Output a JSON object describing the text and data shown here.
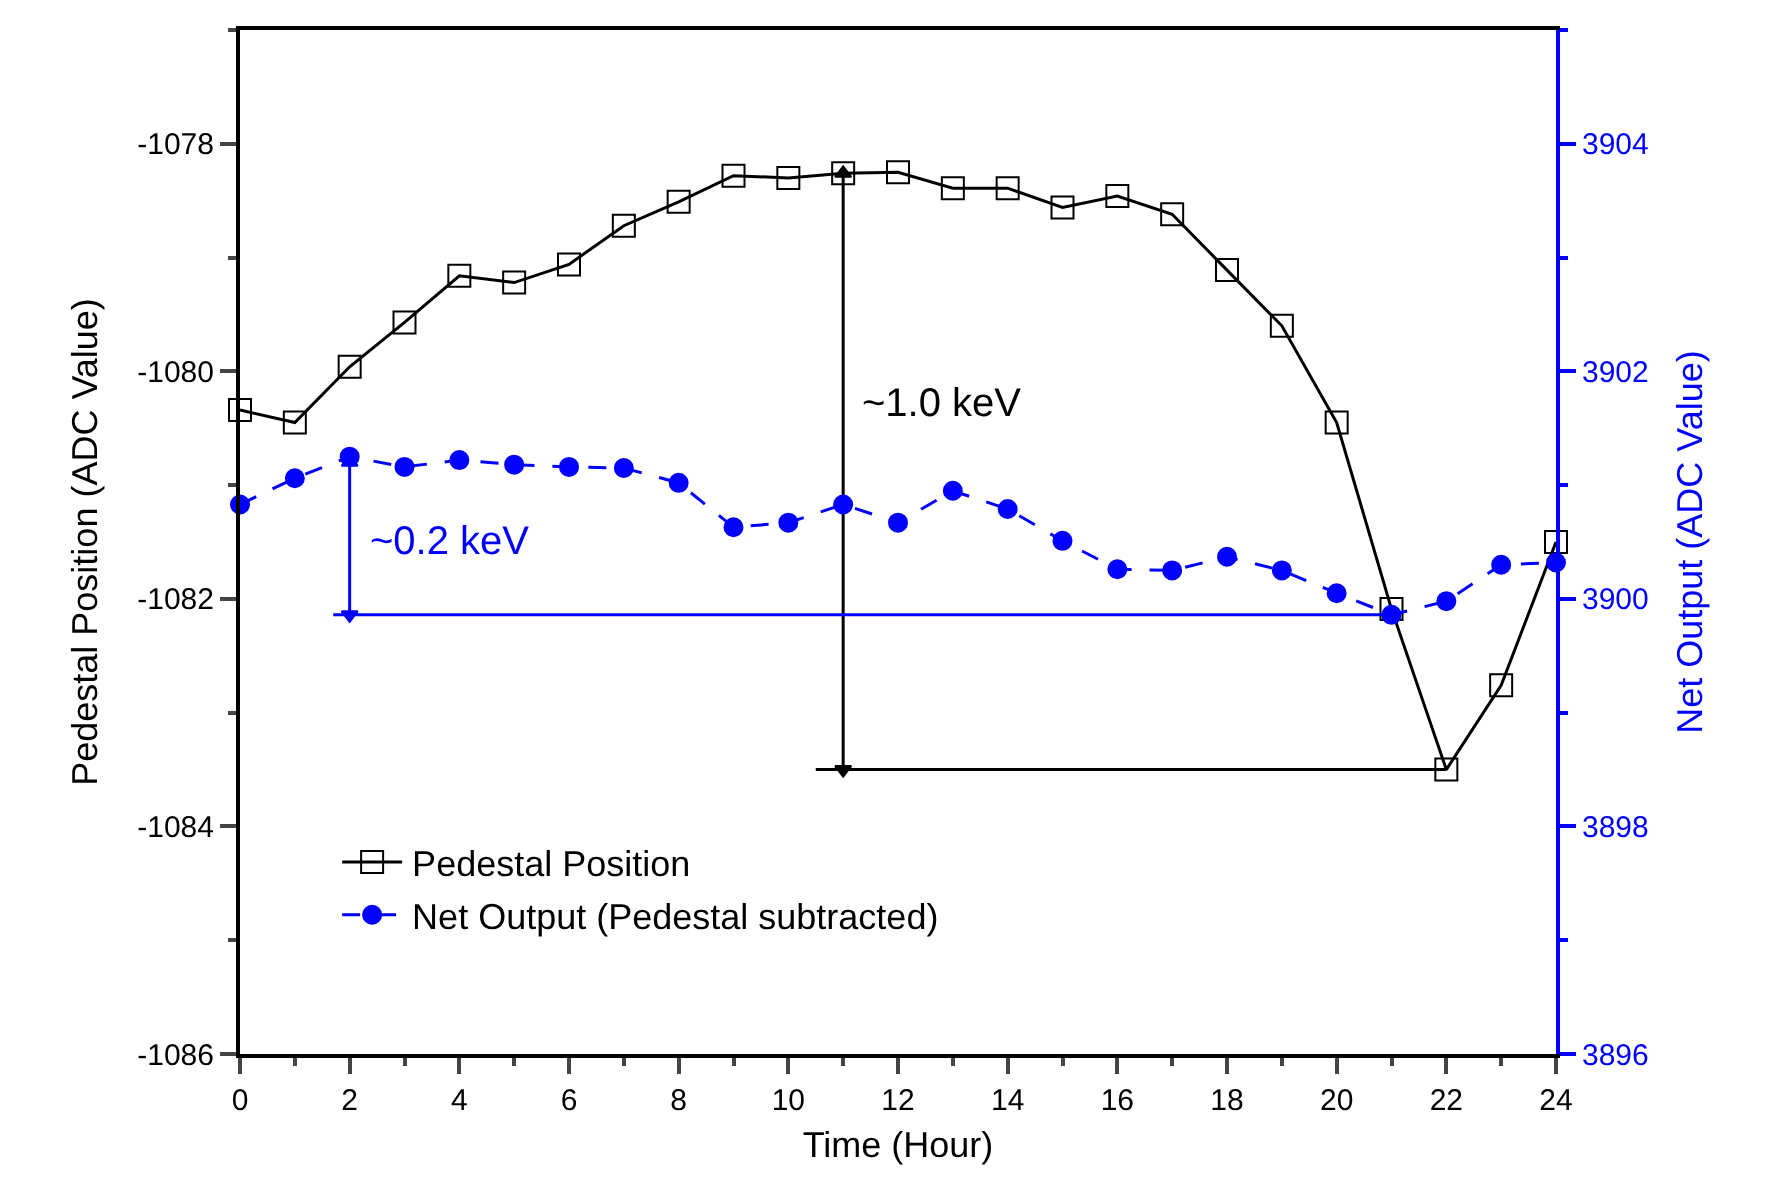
{
  "chart_data": {
    "type": "line",
    "xlabel": "Time (Hour)",
    "ylabel": "Pedestal Position (ADC Value)",
    "y2label": "Net Output (ADC Value)",
    "x": [
      0,
      1,
      2,
      3,
      4,
      5,
      6,
      7,
      8,
      9,
      10,
      11,
      12,
      13,
      14,
      15,
      16,
      17,
      18,
      19,
      20,
      21,
      22,
      23,
      24
    ],
    "series": [
      {
        "name": "Pedestal Position",
        "color": "#000000",
        "marker": "square",
        "line_style": "solid",
        "values": [
          -1080.34,
          -1080.45,
          -1079.96,
          -1079.57,
          -1079.16,
          -1079.22,
          -1079.06,
          -1078.72,
          -1078.51,
          -1078.28,
          -1078.3,
          -1078.26,
          -1078.25,
          -1078.39,
          -1078.39,
          -1078.56,
          -1078.46,
          -1078.62,
          -1079.11,
          -1079.6,
          -1080.45,
          -1082.09,
          -1083.5,
          -1082.76,
          -1081.5
        ]
      },
      {
        "name": "Net Output (Pedestal subtracted)",
        "color": "#0000ff",
        "marker": "circle",
        "line_style": "dashed",
        "axis": "y2",
        "values": [
          3900.83,
          3901.06,
          3901.25,
          3901.16,
          3901.22,
          3901.18,
          3901.16,
          3901.15,
          3901.02,
          3900.63,
          3900.67,
          3900.83,
          3900.67,
          3900.95,
          3900.79,
          3900.51,
          3900.26,
          3900.25,
          3900.37,
          3900.25,
          3900.05,
          3899.86,
          3899.98,
          3900.3,
          3900.32
        ]
      },
      {
        "type": "line",
        "color": "#000000",
        "marker": "none",
        "line_style": "solid",
        "x": [
          10.5,
          22
        ],
        "values": [
          -1083.5,
          -1083.5
        ]
      },
      {
        "type": "line",
        "color": "#000000",
        "marker": "triangle",
        "line_style": "solid",
        "x": [
          11,
          11
        ],
        "values": [
          -1083.5,
          -1078.26
        ]
      },
      {
        "type": "line",
        "color": "#0000ff",
        "marker": "none",
        "line_style": "solid",
        "axis": "y2",
        "x": [
          1.7,
          21
        ],
        "values": [
          3899.86,
          3899.86
        ]
      },
      {
        "type": "line",
        "color": "#0000ff",
        "marker": "triangle",
        "line_style": "solid",
        "axis": "y2",
        "x": [
          2,
          2
        ],
        "values": [
          3899.86,
          3901.2
        ]
      }
    ],
    "annotations": [
      "~1.0 keV",
      "~0.2 keV"
    ],
    "xlim": [
      0,
      24
    ],
    "xticks": [
      0,
      2,
      4,
      6,
      8,
      10,
      12,
      14,
      16,
      18,
      20,
      22,
      24
    ],
    "ylim": [
      -1086,
      -1077
    ],
    "yticks": [
      -1086,
      -1084,
      -1082,
      -1080,
      -1078
    ],
    "y2lim": [
      3896,
      3905
    ],
    "y2ticks": [
      3896,
      3898,
      3900,
      3902,
      3904
    ],
    "legend": "bottom left"
  }
}
